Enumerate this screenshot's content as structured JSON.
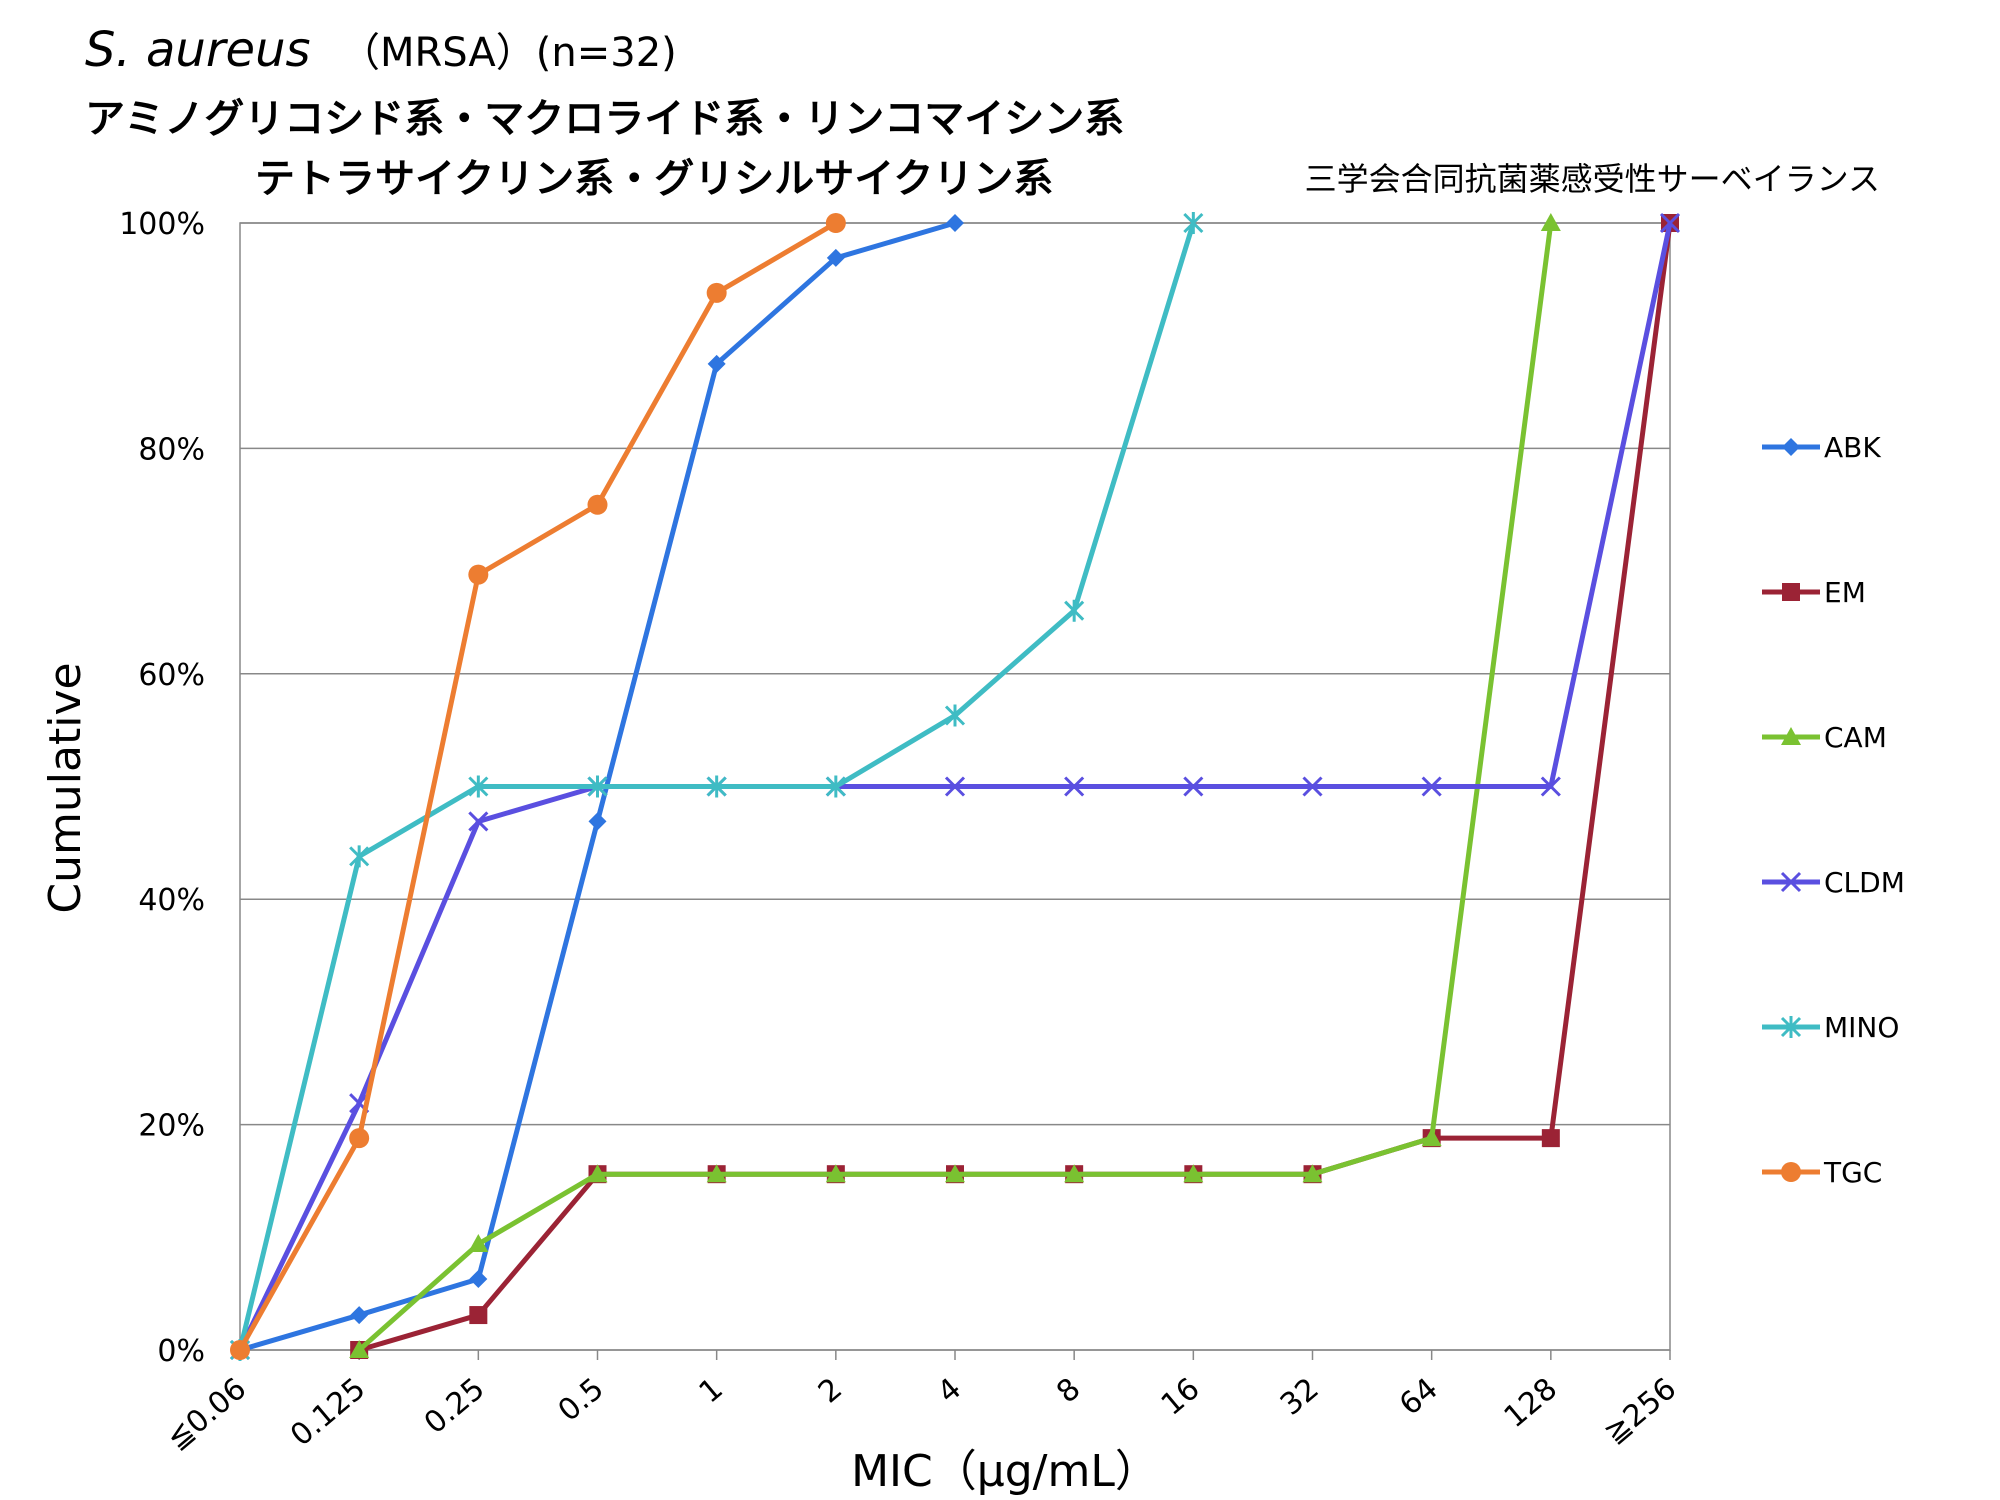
{
  "title": {
    "species": "S. aureus",
    "strain": "（MRSA）(n=32)",
    "line2": "アミノグリコシド系・マクロライド系・リンコマイシン系",
    "line3": "テトラサイクリン系・グリシルサイクリン系",
    "source": "三学会合同抗菌薬感受性サーベイランス"
  },
  "chart_data": {
    "type": "line",
    "xlabel": "MIC（μg/mL）",
    "ylabel": "Cumulative",
    "categories": [
      "≦0.06",
      "0.125",
      "0.25",
      "0.5",
      "1",
      "2",
      "4",
      "8",
      "16",
      "32",
      "64",
      "128",
      "≧256"
    ],
    "ylim": [
      0,
      100
    ],
    "yticks": [
      "0%",
      "20%",
      "40%",
      "60%",
      "80%",
      "100%"
    ],
    "grid": true,
    "legend_position": "right",
    "series": [
      {
        "name": "ABK",
        "color": "#2e75e0",
        "marker": "diamond",
        "values": [
          0,
          3.1,
          6.3,
          46.9,
          87.5,
          96.9,
          100,
          null,
          null,
          null,
          null,
          null,
          null
        ]
      },
      {
        "name": "EM",
        "color": "#9b2335",
        "marker": "square",
        "values": [
          null,
          0,
          3.1,
          15.6,
          15.6,
          15.6,
          15.6,
          15.6,
          15.6,
          15.6,
          18.8,
          18.8,
          100
        ]
      },
      {
        "name": "CAM",
        "color": "#7ac231",
        "marker": "triangle",
        "values": [
          null,
          0,
          9.4,
          15.6,
          15.6,
          15.6,
          15.6,
          15.6,
          15.6,
          15.6,
          18.8,
          100,
          null
        ]
      },
      {
        "name": "CLDM",
        "color": "#5a4fe0",
        "marker": "x",
        "values": [
          0,
          21.9,
          46.9,
          50,
          50,
          50,
          50,
          50,
          50,
          50,
          50,
          50,
          100
        ]
      },
      {
        "name": "MINO",
        "color": "#3fbcc4",
        "marker": "star",
        "values": [
          0,
          43.8,
          50,
          50,
          50,
          50,
          56.3,
          65.6,
          100,
          null,
          null,
          null,
          null
        ]
      },
      {
        "name": "TGC",
        "color": "#ed7d31",
        "marker": "circle",
        "values": [
          0,
          18.8,
          68.8,
          75,
          93.8,
          100,
          null,
          null,
          null,
          null,
          null,
          null,
          null
        ]
      }
    ]
  }
}
